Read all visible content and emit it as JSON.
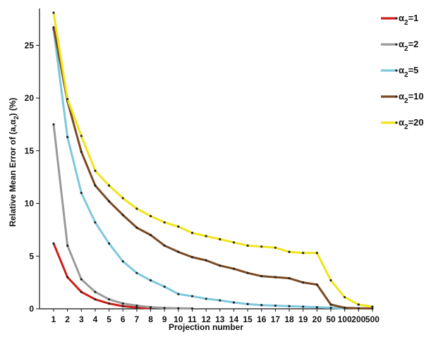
{
  "chart_data": {
    "type": "line",
    "xlabel": "Projection number",
    "ylabel": "Relative Mean Error of (a,α",
    "ylabel_sub": "2",
    "ylabel_tail": ") (%)",
    "categories": [
      "1",
      "2",
      "3",
      "4",
      "5",
      "6",
      "7",
      "8",
      "9",
      "10",
      "11",
      "12",
      "13",
      "14",
      "15",
      "16",
      "17",
      "18",
      "19",
      "20",
      "50",
      "100",
      "200",
      "500"
    ],
    "yticks": [
      "0",
      "5",
      "10",
      "15",
      "20",
      "25"
    ],
    "ylim": [
      0,
      28.5
    ],
    "grid": false,
    "legend_position": "top-right",
    "series": [
      {
        "name": "α",
        "sub": "2",
        "suffix": "=1",
        "color": "#cc1f1a",
        "values": [
          6.2,
          3.0,
          1.6,
          0.9,
          0.5,
          0.25,
          0.12,
          0.05,
          null,
          null,
          null,
          null,
          null,
          null,
          null,
          null,
          null,
          null,
          null,
          null,
          null,
          null,
          null,
          null
        ]
      },
      {
        "name": "α",
        "sub": "2",
        "suffix": "=2",
        "color": "#9a9a9a",
        "values": [
          17.5,
          6.0,
          2.8,
          1.6,
          0.9,
          0.5,
          0.3,
          0.15,
          0.08,
          0.05,
          0.03,
          null,
          null,
          null,
          null,
          null,
          null,
          null,
          null,
          null,
          null,
          null,
          null,
          null
        ]
      },
      {
        "name": "α",
        "sub": "2",
        "suffix": "=5",
        "color": "#7ec8dc",
        "values": [
          26.5,
          16.3,
          11.0,
          8.2,
          6.2,
          4.5,
          3.4,
          2.7,
          2.1,
          1.4,
          1.2,
          0.95,
          0.8,
          0.6,
          0.45,
          0.35,
          0.3,
          0.25,
          0.2,
          0.15,
          0.1,
          0.05,
          null,
          null
        ]
      },
      {
        "name": "α",
        "sub": "2",
        "suffix": "=10",
        "color": "#7a4a22",
        "values": [
          26.7,
          19.7,
          14.9,
          11.7,
          10.2,
          8.9,
          7.7,
          7.0,
          6.0,
          5.4,
          4.9,
          4.6,
          4.1,
          3.8,
          3.4,
          3.1,
          3.0,
          2.9,
          2.5,
          2.3,
          0.4,
          0.1,
          0.05,
          0.03
        ]
      },
      {
        "name": "α",
        "sub": "2",
        "suffix": "=20",
        "color": "#f0e41a",
        "values": [
          28.1,
          19.9,
          16.4,
          13.1,
          11.7,
          10.5,
          9.5,
          8.8,
          8.2,
          7.8,
          7.2,
          6.9,
          6.6,
          6.3,
          6.0,
          5.9,
          5.8,
          5.4,
          5.3,
          5.3,
          2.7,
          1.1,
          0.4,
          0.2
        ]
      }
    ]
  }
}
